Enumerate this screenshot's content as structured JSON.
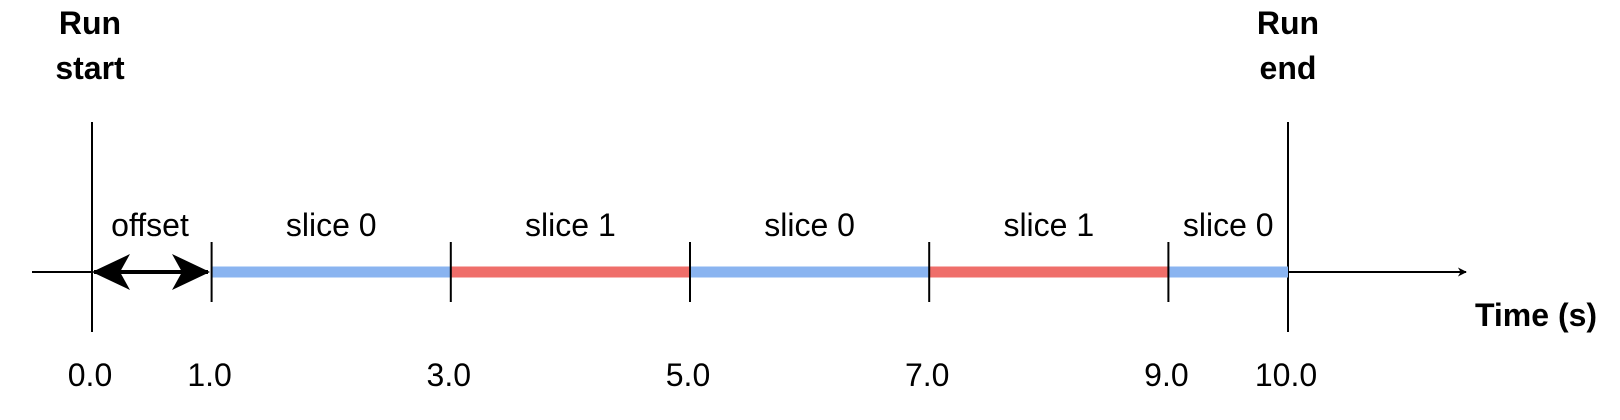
{
  "run_start": {
    "line1": "Run",
    "line2": "start"
  },
  "run_end": {
    "line1": "Run",
    "line2": "end"
  },
  "offset_label": "offset",
  "axis_label": "Time (s)",
  "segments": [
    {
      "label": "slice 0",
      "start": 1.0,
      "end": 3.0,
      "color": "#8ab4f0"
    },
    {
      "label": "slice 1",
      "start": 3.0,
      "end": 5.0,
      "color": "#ef6e6a"
    },
    {
      "label": "slice 0",
      "start": 5.0,
      "end": 7.0,
      "color": "#8ab4f0"
    },
    {
      "label": "slice 1",
      "start": 7.0,
      "end": 9.0,
      "color": "#ef6e6a"
    },
    {
      "label": "slice 0",
      "start": 9.0,
      "end": 10.0,
      "color": "#8ab4f0"
    }
  ],
  "ticks": [
    "0.0",
    "1.0",
    "3.0",
    "5.0",
    "7.0",
    "9.0",
    "10.0"
  ],
  "colors": {
    "slice_0": "#8ab4f0",
    "slice_1": "#ef6e6a",
    "line": "#000000"
  }
}
